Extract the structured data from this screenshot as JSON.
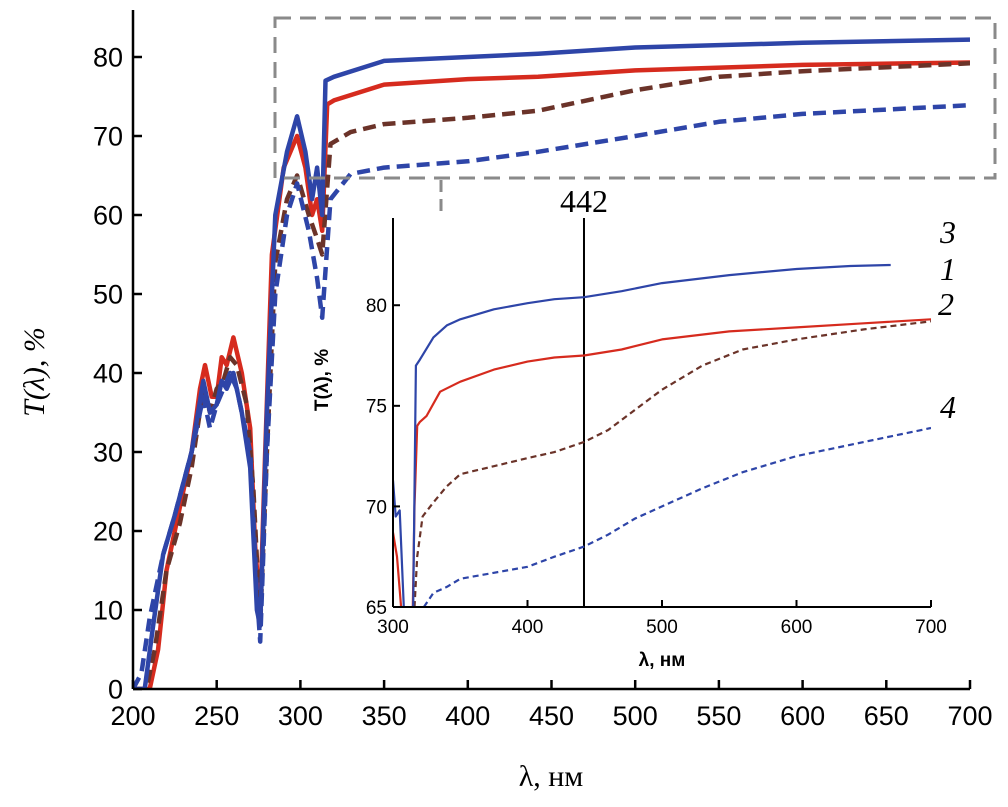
{
  "chart_data": [
    {
      "type": "line",
      "title": "",
      "xlabel": "λ, нм",
      "ylabel": "T(λ), %",
      "xlim": [
        200,
        700
      ],
      "ylim": [
        0,
        80
      ],
      "xticks": [
        200,
        250,
        300,
        350,
        400,
        450,
        500,
        550,
        600,
        650,
        700
      ],
      "yticks": [
        0,
        10,
        20,
        30,
        40,
        50,
        60,
        70,
        80
      ],
      "grid": false,
      "series": [
        {
          "name": "1",
          "color": "#d62b1e",
          "style": "solid",
          "x": [
            200,
            210,
            215,
            220,
            225,
            230,
            235,
            240,
            243,
            247,
            250,
            253,
            256,
            260,
            265,
            270,
            273,
            276,
            279,
            283,
            290,
            298,
            303,
            307,
            310,
            313,
            316,
            320,
            350,
            400,
            442,
            500,
            600,
            700
          ],
          "y": [
            0,
            0,
            5,
            15,
            20,
            25,
            30,
            38,
            41,
            37,
            37,
            42,
            41,
            44.5,
            40,
            33,
            18,
            10,
            30,
            55,
            66,
            70,
            66,
            60,
            62,
            58,
            74,
            74.5,
            76.5,
            77.2,
            77.5,
            78.3,
            79,
            79.3
          ]
        },
        {
          "name": "2",
          "color": "#6b3329",
          "style": "dashed",
          "x": [
            200,
            208,
            213,
            220,
            228,
            235,
            242,
            246,
            250,
            254,
            258,
            262,
            268,
            272,
            276,
            280,
            285,
            292,
            298,
            305,
            310,
            313,
            318,
            330,
            350,
            400,
            442,
            500,
            550,
            600,
            700
          ],
          "y": [
            0,
            0,
            5,
            15,
            21,
            28,
            38,
            35,
            38,
            39,
            42,
            41,
            36,
            25,
            8,
            30,
            54,
            62,
            65,
            60,
            57,
            55,
            69,
            70.5,
            71.5,
            72.3,
            73.2,
            75.8,
            77.5,
            78.2,
            79.2
          ]
        },
        {
          "name": "3",
          "color": "#2e45a8",
          "style": "solid",
          "x": [
            200,
            207,
            212,
            218,
            225,
            235,
            242,
            246,
            250,
            253,
            256,
            260,
            265,
            270,
            274,
            276,
            280,
            285,
            292,
            298,
            303,
            307,
            310,
            313,
            315,
            320,
            350,
            400,
            442,
            500,
            600,
            700
          ],
          "y": [
            0,
            0,
            8,
            17,
            22,
            30,
            39,
            35,
            36,
            39,
            38,
            40,
            35,
            28,
            10,
            8,
            35,
            60,
            68,
            72.5,
            68,
            62,
            66,
            60,
            77,
            77.5,
            79.5,
            80,
            80.4,
            81.2,
            81.8,
            82.2
          ]
        },
        {
          "name": "4",
          "color": "#2e45a8",
          "style": "dashed",
          "x": [
            200,
            205,
            210,
            218,
            225,
            235,
            242,
            246,
            250,
            254,
            258,
            262,
            270,
            274,
            276,
            280,
            285,
            292,
            298,
            305,
            310,
            313,
            318,
            330,
            350,
            400,
            442,
            500,
            550,
            600,
            700
          ],
          "y": [
            0,
            2,
            9,
            17,
            22,
            30,
            37,
            33,
            36,
            38,
            40,
            38,
            30,
            12,
            6,
            30,
            50,
            60,
            64,
            58,
            52,
            47,
            62,
            65.2,
            66,
            66.8,
            68,
            70,
            71.8,
            72.8,
            73.9
          ]
        }
      ]
    },
    {
      "type": "line",
      "title": "inset",
      "xlabel": "λ, нм",
      "ylabel": "T(λ), %",
      "xlim": [
        300,
        700
      ],
      "ylim": [
        65,
        82
      ],
      "xticks": [
        300,
        400,
        500,
        600,
        700
      ],
      "yticks": [
        65,
        70,
        75,
        80
      ],
      "annotation": {
        "label": "442",
        "x": 442
      },
      "series": [
        {
          "name": "1",
          "color": "#d62b1e",
          "style": "solid",
          "x": [
            300,
            303,
            306,
            310,
            314,
            316,
            318,
            320,
            325,
            335,
            350,
            375,
            400,
            420,
            442,
            470,
            500,
            550,
            600,
            650,
            700
          ],
          "y": [
            68.7,
            67.5,
            65,
            63,
            62,
            70,
            74,
            74.2,
            74.5,
            75.7,
            76.2,
            76.8,
            77.2,
            77.4,
            77.5,
            77.8,
            78.3,
            78.7,
            78.9,
            79.1,
            79.3
          ]
        },
        {
          "name": "2",
          "color": "#6b3329",
          "style": "dashed",
          "x": [
            316,
            318,
            322,
            330,
            340,
            350,
            375,
            400,
            420,
            442,
            460,
            480,
            500,
            530,
            560,
            600,
            650,
            700
          ],
          "y": [
            65,
            67.5,
            69.5,
            70.2,
            71,
            71.6,
            72,
            72.4,
            72.7,
            73.2,
            73.8,
            74.8,
            75.8,
            77,
            77.8,
            78.3,
            78.8,
            79.2
          ]
        },
        {
          "name": "3",
          "color": "#2e45a8",
          "style": "solid",
          "x": [
            300,
            302,
            305,
            308,
            312,
            315,
            317,
            320,
            330,
            340,
            350,
            375,
            400,
            420,
            442,
            470,
            500,
            550,
            600,
            640,
            670
          ],
          "y": [
            71.3,
            69.5,
            69.8,
            65,
            62,
            65,
            77,
            77.3,
            78.4,
            79,
            79.3,
            79.8,
            80.1,
            80.3,
            80.4,
            80.7,
            81.1,
            81.5,
            81.8,
            81.95,
            82
          ]
        },
        {
          "name": "4",
          "color": "#2e45a8",
          "style": "dashed",
          "x": [
            323,
            330,
            340,
            350,
            375,
            400,
            420,
            442,
            460,
            480,
            500,
            530,
            560,
            600,
            650,
            700
          ],
          "y": [
            65,
            65.7,
            66,
            66.4,
            66.7,
            67,
            67.5,
            68,
            68.6,
            69.4,
            70,
            70.9,
            71.7,
            72.5,
            73.2,
            73.9
          ]
        }
      ]
    }
  ]
}
